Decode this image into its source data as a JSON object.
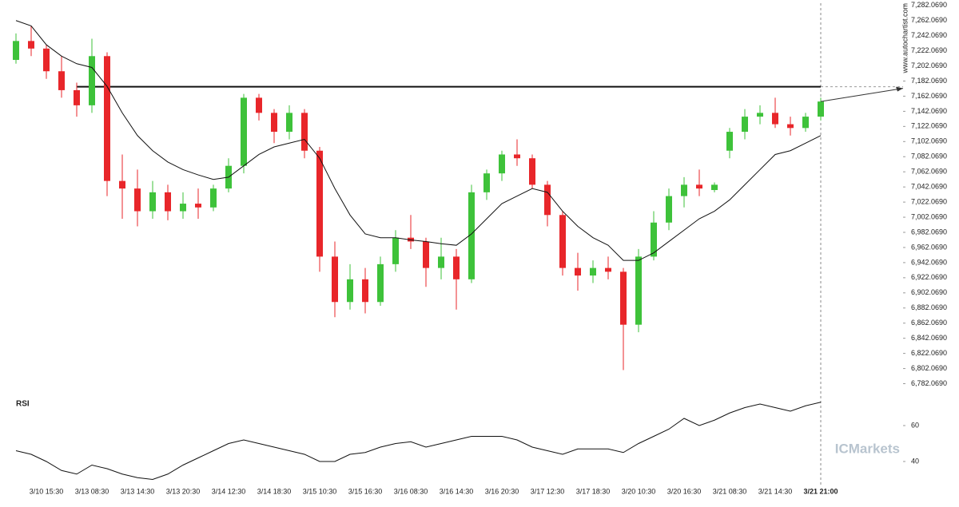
{
  "chart_data": [
    {
      "type": "candlestick",
      "categories": [
        null,
        null,
        "3/10 15:30",
        null,
        null,
        "3/13 08:30",
        null,
        null,
        "3/13 14:30",
        null,
        null,
        "3/13 20:30",
        null,
        null,
        "3/14 12:30",
        null,
        null,
        "3/14 18:30",
        null,
        null,
        "3/15 10:30",
        null,
        null,
        "3/15 16:30",
        null,
        null,
        "3/16 08:30",
        null,
        null,
        "3/16 14:30",
        null,
        null,
        "3/16 20:30",
        null,
        null,
        "3/17 12:30",
        null,
        null,
        "3/17 18:30",
        null,
        null,
        "3/20 10:30",
        null,
        null,
        "3/20 16:30",
        null,
        null,
        "3/21 08:30",
        null,
        null,
        "3/21 14:30",
        null,
        null,
        "3/21 21:00"
      ],
      "open": [
        7210,
        7235,
        7225,
        7195,
        7170,
        7150,
        7215,
        7050,
        7040,
        7010,
        7035,
        7010,
        7020,
        7015,
        7040,
        7070,
        7160,
        7140,
        7115,
        7140,
        7090,
        6950,
        6890,
        6920,
        6890,
        6940,
        6975,
        6970,
        6935,
        6950,
        6920,
        7035,
        7060,
        7085,
        7080,
        7045,
        7005,
        6935,
        6925,
        6935,
        6930,
        6860,
        6950,
        6995,
        7030,
        7045,
        7038,
        7090,
        7115,
        7135,
        7140,
        7125,
        7120,
        7135
      ],
      "high": [
        7245,
        7255,
        7230,
        7215,
        7180,
        7238,
        7220,
        7085,
        7065,
        7050,
        7045,
        7035,
        7040,
        7045,
        7080,
        7165,
        7165,
        7145,
        7150,
        7145,
        7095,
        6970,
        6940,
        6935,
        6950,
        6985,
        7005,
        6975,
        6975,
        6960,
        7045,
        7065,
        7090,
        7105,
        7085,
        7050,
        7010,
        6955,
        6945,
        6950,
        6935,
        6960,
        7010,
        7040,
        7055,
        7065,
        7048,
        7120,
        7145,
        7150,
        7160,
        7135,
        7140,
        7160
      ],
      "low": [
        7205,
        7215,
        7185,
        7160,
        7135,
        7140,
        7030,
        7000,
        6990,
        7000,
        6998,
        7000,
        7000,
        7010,
        7035,
        7060,
        7130,
        7100,
        7105,
        7080,
        6930,
        6870,
        6880,
        6875,
        6885,
        6930,
        6960,
        6910,
        6920,
        6880,
        6915,
        7025,
        7050,
        7070,
        7040,
        6990,
        6925,
        6905,
        6915,
        6920,
        6800,
        6850,
        6945,
        6985,
        7015,
        7030,
        7035,
        7080,
        7105,
        7125,
        7120,
        7110,
        7115,
        7130
      ],
      "close": [
        7235,
        7225,
        7195,
        7170,
        7150,
        7215,
        7050,
        7040,
        7010,
        7035,
        7010,
        7020,
        7015,
        7040,
        7070,
        7160,
        7140,
        7115,
        7140,
        7090,
        6950,
        6890,
        6920,
        6890,
        6940,
        6975,
        6970,
        6935,
        6950,
        6920,
        7035,
        7060,
        7085,
        7080,
        7045,
        7005,
        6935,
        6925,
        6935,
        6930,
        6860,
        6950,
        6995,
        7030,
        7045,
        7040,
        7045,
        7115,
        7135,
        7140,
        7125,
        7120,
        7135,
        7155
      ],
      "moving_average": [
        7262,
        7255,
        7230,
        7215,
        7205,
        7200,
        7175,
        7140,
        7110,
        7090,
        7075,
        7065,
        7058,
        7052,
        7055,
        7070,
        7085,
        7095,
        7100,
        7105,
        7080,
        7040,
        7005,
        6980,
        6975,
        6975,
        6972,
        6970,
        6967,
        6965,
        6980,
        7000,
        7020,
        7030,
        7040,
        7035,
        7010,
        6990,
        6975,
        6965,
        6945,
        6945,
        6955,
        6970,
        6985,
        7000,
        7010,
        7025,
        7045,
        7065,
        7085,
        7090,
        7100,
        7110
      ],
      "resistance": 7174.5,
      "up_color": "#3ec23a",
      "down_color": "#e8262a",
      "ylim": [
        6772.069,
        7287.069
      ],
      "yticks": [
        {
          "value": 6782.069,
          "label": "6,782.0690"
        },
        {
          "value": 6802.069,
          "label": "6,802.0690"
        },
        {
          "value": 6822.069,
          "label": "6,822.0690"
        },
        {
          "value": 6842.069,
          "label": "6,842.0690"
        },
        {
          "value": 6862.069,
          "label": "6,862.0690"
        },
        {
          "value": 6882.069,
          "label": "6,882.0690"
        },
        {
          "value": 6902.069,
          "label": "6,902.0690"
        },
        {
          "value": 6922.069,
          "label": "6,922.0690"
        },
        {
          "value": 6942.069,
          "label": "6,942.0690"
        },
        {
          "value": 6962.069,
          "label": "6,962.0690"
        },
        {
          "value": 6982.069,
          "label": "6,982.0690"
        },
        {
          "value": 7002.069,
          "label": "7,002.0690"
        },
        {
          "value": 7022.069,
          "label": "7,022.0690"
        },
        {
          "value": 7042.069,
          "label": "7,042.0690"
        },
        {
          "value": 7062.069,
          "label": "7,062.0690"
        },
        {
          "value": 7082.069,
          "label": "7,082.0690"
        },
        {
          "value": 7102.069,
          "label": "7,102.0690"
        },
        {
          "value": 7122.069,
          "label": "7,122.0690"
        },
        {
          "value": 7142.069,
          "label": "7,142.0690"
        },
        {
          "value": 7162.069,
          "label": "7,162.0690"
        },
        {
          "value": 7182.069,
          "label": "7,182.0690"
        },
        {
          "value": 7202.069,
          "label": "7,202.0690"
        },
        {
          "value": 7222.069,
          "label": "7,222.0690"
        },
        {
          "value": 7242.069,
          "label": "7,242.0690"
        },
        {
          "value": 7262.069,
          "label": "7,262.0690"
        },
        {
          "value": 7282.069,
          "label": "7,282.0690"
        }
      ],
      "source": "www.autochartist.com"
    },
    {
      "type": "line",
      "title": "RSI",
      "values": [
        46,
        44,
        40,
        35,
        33,
        38,
        36,
        33,
        31,
        30,
        33,
        38,
        42,
        46,
        50,
        52,
        50,
        48,
        46,
        44,
        40,
        40,
        44,
        45,
        48,
        50,
        51,
        48,
        50,
        52,
        54,
        54,
        54,
        52,
        48,
        46,
        44,
        47,
        47,
        47,
        45,
        50,
        54,
        58,
        64,
        60,
        63,
        67,
        70,
        72,
        70,
        68,
        71,
        73
      ],
      "ylim": [
        28,
        76
      ],
      "yticks": [
        40,
        60
      ],
      "watermark": "ICMarkets"
    }
  ]
}
